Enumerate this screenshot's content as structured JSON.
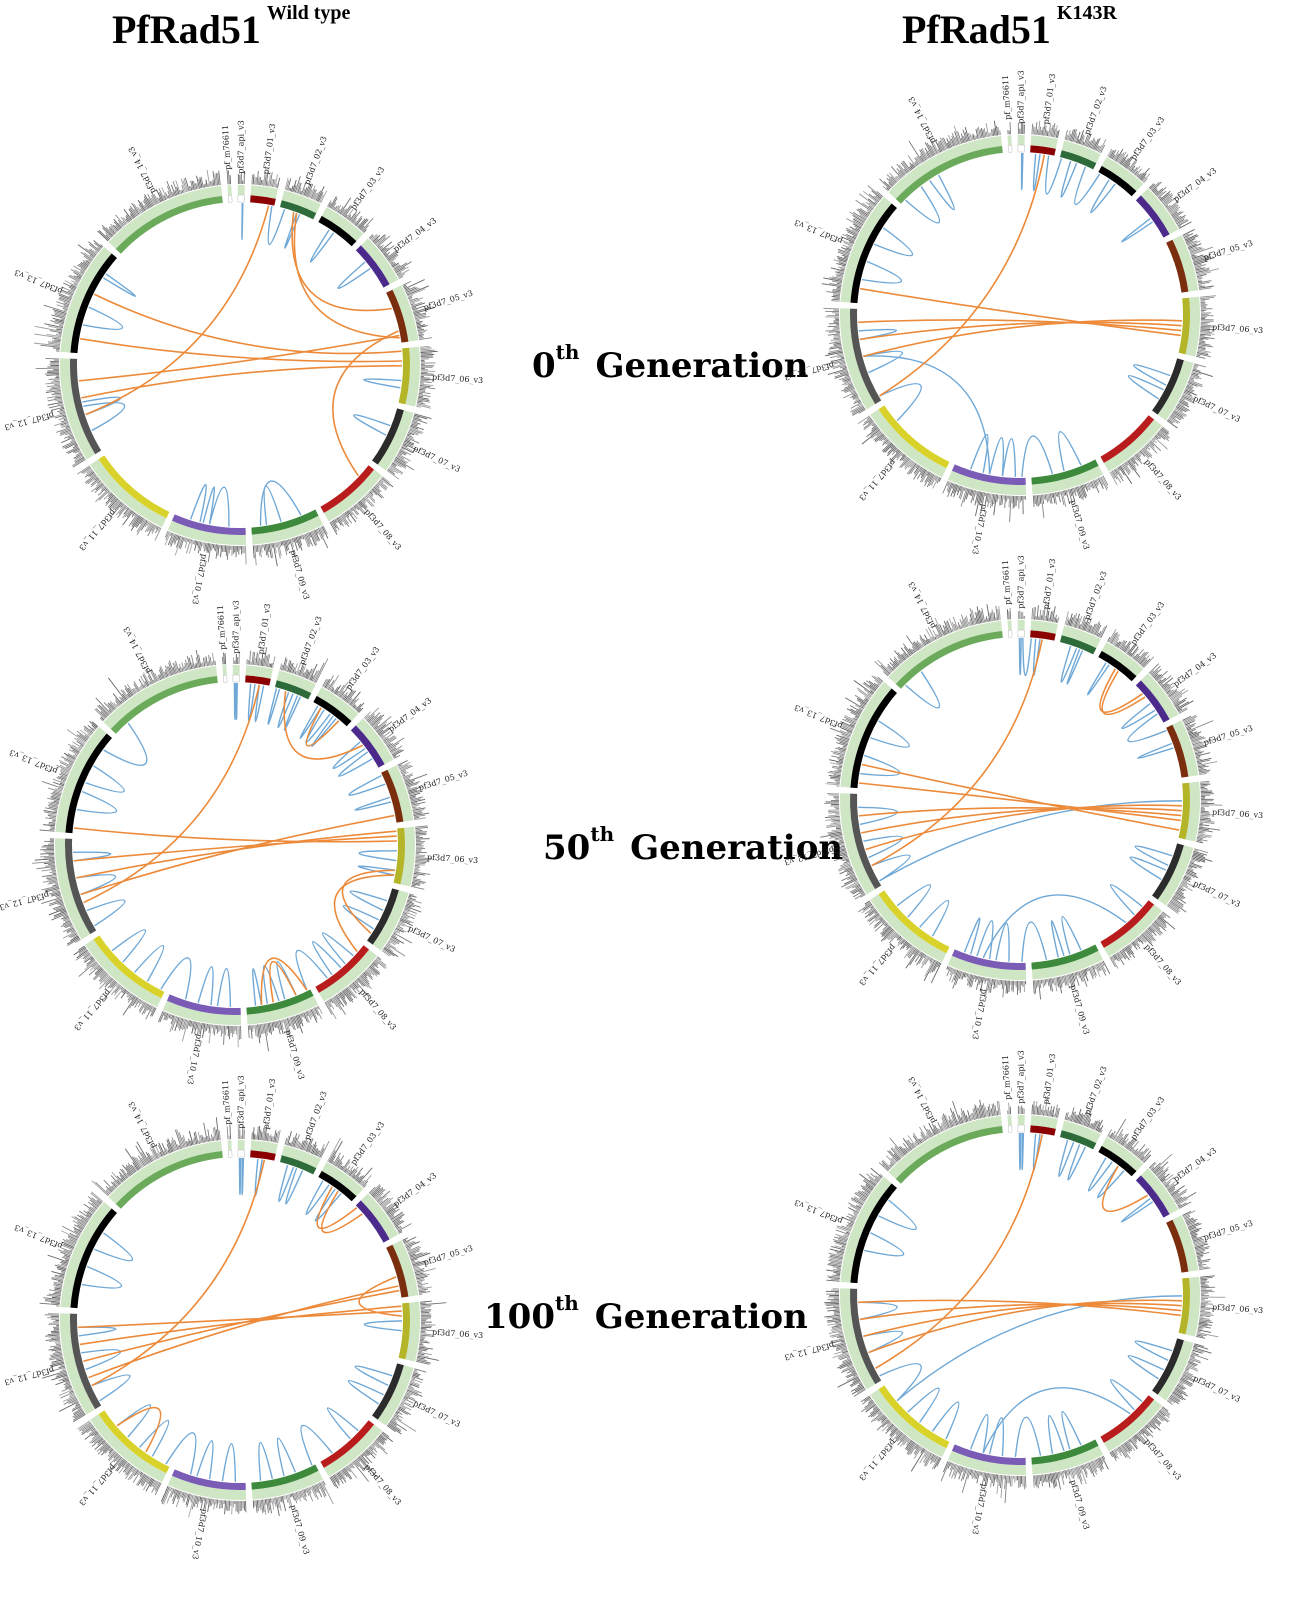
{
  "columns": {
    "left": {
      "name": "PfRad51",
      "superscript": "Wild type"
    },
    "right": {
      "name": "PfRad51",
      "superscript": "K143R"
    }
  },
  "generations": [
    {
      "number": "0",
      "suffix": "th",
      "word": "Generation"
    },
    {
      "number": "50",
      "suffix": "th",
      "word": "Generation"
    },
    {
      "number": "100",
      "suffix": "th",
      "word": "Generation"
    }
  ],
  "chromosomes": [
    {
      "id": "pf_m76611",
      "label": "pf_m76611",
      "color": "#ffffff"
    },
    {
      "id": "pf3d7_api_v3",
      "label": "pf3d7_api_v3",
      "color": "#ffffff"
    },
    {
      "id": "pf3d7_01",
      "label": "pf3d7_01_v3",
      "color": "#8b0000"
    },
    {
      "id": "pf3d7_02",
      "label": "pf3d7_02_v3",
      "color": "#2e6b3a"
    },
    {
      "id": "pf3d7_03",
      "label": "pf3d7_03_v3",
      "color": "#000000"
    },
    {
      "id": "pf3d7_04",
      "label": "pf3d7_04_v3",
      "color": "#4b2a8c"
    },
    {
      "id": "pf3d7_05",
      "label": "pf3d7_05_v3",
      "color": "#7a2e0e"
    },
    {
      "id": "pf3d7_06",
      "label": "pf3d7_06_v3",
      "color": "#b5b52a"
    },
    {
      "id": "pf3d7_07",
      "label": "pf3d7_07_v3",
      "color": "#2b2b2b"
    },
    {
      "id": "pf3d7_08",
      "label": "pf3d7_08_v3",
      "color": "#b81c1c"
    },
    {
      "id": "pf3d7_09",
      "label": "pf3d7_09_v3",
      "color": "#3d8a3d"
    },
    {
      "id": "pf3d7_10",
      "label": "pf3d7_10_v3",
      "color": "#7a5bb5"
    },
    {
      "id": "pf3d7_11",
      "label": "pf3d7_11_v3",
      "color": "#d9d22a"
    },
    {
      "id": "pf3d7_12",
      "label": "pf3d7_12_v3",
      "color": "#555555"
    },
    {
      "id": "pf3d7_13",
      "label": "pf3d7_13_v3",
      "color": "#000000"
    },
    {
      "id": "pf3d7_14",
      "label": "pf3d7_14_v3",
      "color": "#6aaa5a"
    }
  ],
  "colors": {
    "intra_link": "#6fa8d6",
    "inter_link": "#ec8a3a",
    "ideogram_band": "#cfe6c4",
    "histogram": "#222222"
  },
  "plots": [
    {
      "id": "wt-0",
      "column": "left",
      "generation": "0",
      "intra": [
        [
          3.5,
          3.6
        ],
        [
          4.3,
          4.45
        ],
        [
          5.3,
          5.5
        ],
        [
          7.6,
          7.75
        ],
        [
          8.3,
          8.5
        ],
        [
          10.55,
          10.8
        ],
        [
          10.2,
          10.9
        ],
        [
          11.2,
          11.5
        ],
        [
          11.5,
          11.6
        ],
        [
          11.65,
          11.8
        ],
        [
          13.2,
          13.5
        ],
        [
          13.4,
          13.55
        ],
        [
          14.25,
          14.45
        ],
        [
          14.8,
          14.85
        ],
        [
          1.7,
          1.8
        ],
        [
          2.95,
          3.1
        ]
      ],
      "inter": [
        [
          2.8,
          13.4
        ],
        [
          3.4,
          6.3
        ],
        [
          3.5,
          6.95
        ],
        [
          7.2,
          14.1
        ],
        [
          6.9,
          13.8
        ],
        [
          7.0,
          14.6
        ],
        [
          7.3,
          13.6
        ],
        [
          6.8,
          9.2
        ]
      ]
    },
    {
      "id": "k143r-0",
      "column": "right",
      "generation": "0",
      "intra": [
        [
          1.6,
          1.8
        ],
        [
          2.2,
          2.4
        ],
        [
          2.8,
          3.0
        ],
        [
          3.3,
          3.5
        ],
        [
          3.8,
          4.0
        ],
        [
          4.3,
          4.5
        ],
        [
          5.5,
          5.6
        ],
        [
          8.3,
          8.5
        ],
        [
          8.6,
          8.8
        ],
        [
          10.2,
          10.5
        ],
        [
          10.7,
          11.0
        ],
        [
          11.1,
          11.3
        ],
        [
          11.3,
          11.5
        ],
        [
          11.6,
          11.8
        ],
        [
          11.5,
          13.5
        ],
        [
          12.8,
          13.0
        ],
        [
          13.3,
          13.5
        ],
        [
          13.7,
          13.8
        ],
        [
          14.2,
          14.4
        ],
        [
          14.6,
          14.8
        ],
        [
          15.0,
          15.2
        ],
        [
          15.3,
          15.4
        ]
      ],
      "inter": [
        [
          2.6,
          13.0
        ],
        [
          7.4,
          13.5
        ],
        [
          7.5,
          13.7
        ],
        [
          7.6,
          13.9
        ],
        [
          7.7,
          14.1
        ]
      ]
    },
    {
      "id": "wt-50",
      "column": "left",
      "generation": "50",
      "intra": [
        [
          1.2,
          1.4
        ],
        [
          1.6,
          1.7
        ],
        [
          2.2,
          2.4
        ],
        [
          2.6,
          2.8
        ],
        [
          3.0,
          3.1
        ],
        [
          3.4,
          3.55
        ],
        [
          3.7,
          3.8
        ],
        [
          4.1,
          4.2
        ],
        [
          4.3,
          4.5
        ],
        [
          4.6,
          4.7
        ],
        [
          5.3,
          5.5
        ],
        [
          5.6,
          5.8
        ],
        [
          6.0,
          6.2
        ],
        [
          6.5,
          6.6
        ],
        [
          7.4,
          7.6
        ],
        [
          7.8,
          7.9
        ],
        [
          8.2,
          8.4
        ],
        [
          8.6,
          8.8
        ],
        [
          9.2,
          9.4
        ],
        [
          9.5,
          9.7
        ],
        [
          9.8,
          10.0
        ],
        [
          10.2,
          10.4
        ],
        [
          10.5,
          10.7
        ],
        [
          10.8,
          10.9
        ],
        [
          11.1,
          11.3
        ],
        [
          11.4,
          11.6
        ],
        [
          11.8,
          12.0
        ],
        [
          12.2,
          12.4
        ],
        [
          12.6,
          12.8
        ],
        [
          13.0,
          13.2
        ],
        [
          13.4,
          13.6
        ],
        [
          13.8,
          13.9
        ],
        [
          14.2,
          14.4
        ],
        [
          14.5,
          14.7
        ],
        [
          14.9,
          15.1
        ]
      ],
      "inter": [
        [
          2.6,
          13.3
        ],
        [
          3.3,
          5.4
        ],
        [
          6.9,
          13.4
        ],
        [
          7.0,
          13.6
        ],
        [
          7.1,
          13.8
        ],
        [
          7.2,
          14.0
        ],
        [
          7.8,
          8.9
        ],
        [
          7.9,
          9.1
        ],
        [
          10.2,
          10.6
        ],
        [
          10.0,
          10.8
        ],
        [
          4.2,
          4.8
        ]
      ]
    },
    {
      "id": "k143r-50",
      "column": "right",
      "generation": "50",
      "intra": [
        [
          1.2,
          1.5
        ],
        [
          1.8,
          2.0
        ],
        [
          2.2,
          2.4
        ],
        [
          3.3,
          3.5
        ],
        [
          3.6,
          3.7
        ],
        [
          4.2,
          4.3
        ],
        [
          5.5,
          5.7
        ],
        [
          5.8,
          6.0
        ],
        [
          6.3,
          6.4
        ],
        [
          8.2,
          8.4
        ],
        [
          8.5,
          8.7
        ],
        [
          9.1,
          9.3
        ],
        [
          10.2,
          10.4
        ],
        [
          10.5,
          10.6
        ],
        [
          10.8,
          11.0
        ],
        [
          11.2,
          11.4
        ],
        [
          11.5,
          11.7
        ],
        [
          11.8,
          11.9
        ],
        [
          12.2,
          12.4
        ],
        [
          12.6,
          12.8
        ],
        [
          13.0,
          13.2
        ],
        [
          13.3,
          13.5
        ],
        [
          13.7,
          13.9
        ],
        [
          14.1,
          14.3
        ],
        [
          14.5,
          14.7
        ],
        [
          15.0,
          15.2
        ],
        [
          7.3,
          13.0
        ],
        [
          9.5,
          11.6
        ]
      ],
      "inter": [
        [
          2.5,
          13.2
        ],
        [
          4.5,
          5.2
        ],
        [
          4.6,
          5.3
        ],
        [
          7.4,
          13.4
        ],
        [
          7.5,
          13.6
        ],
        [
          7.6,
          13.8
        ],
        [
          7.7,
          14.0
        ],
        [
          7.9,
          14.2
        ]
      ]
    },
    {
      "id": "wt-100",
      "column": "left",
      "generation": "100",
      "intra": [
        [
          1.2,
          1.4
        ],
        [
          1.7,
          1.9
        ],
        [
          2.3,
          2.5
        ],
        [
          3.2,
          3.4
        ],
        [
          3.5,
          3.7
        ],
        [
          4.1,
          4.3
        ],
        [
          4.5,
          4.7
        ],
        [
          7.3,
          7.5
        ],
        [
          8.2,
          8.4
        ],
        [
          8.6,
          8.8
        ],
        [
          9.2,
          9.4
        ],
        [
          9.8,
          10.0
        ],
        [
          10.3,
          10.5
        ],
        [
          10.7,
          10.9
        ],
        [
          11.1,
          11.3
        ],
        [
          11.5,
          11.7
        ],
        [
          11.8,
          12.0
        ],
        [
          12.2,
          12.4
        ],
        [
          12.6,
          12.8
        ],
        [
          13.0,
          13.2
        ],
        [
          13.4,
          13.6
        ],
        [
          13.8,
          13.9
        ],
        [
          14.2,
          14.4
        ],
        [
          14.6,
          14.8
        ]
      ],
      "inter": [
        [
          2.6,
          13.2
        ],
        [
          4.4,
          5.0
        ],
        [
          4.6,
          5.2
        ],
        [
          6.8,
          13.3
        ],
        [
          6.9,
          13.5
        ],
        [
          7.0,
          13.7
        ],
        [
          7.1,
          13.9
        ],
        [
          6.6,
          7.2
        ],
        [
          12.3,
          12.8
        ]
      ]
    },
    {
      "id": "k143r-100",
      "column": "right",
      "generation": "100",
      "intra": [
        [
          1.2,
          1.4
        ],
        [
          1.7,
          1.9
        ],
        [
          2.2,
          2.4
        ],
        [
          3.2,
          3.4
        ],
        [
          3.6,
          3.8
        ],
        [
          4.2,
          4.4
        ],
        [
          4.6,
          4.8
        ],
        [
          5.5,
          5.6
        ],
        [
          8.2,
          8.4
        ],
        [
          8.6,
          8.8
        ],
        [
          9.1,
          9.3
        ],
        [
          10.2,
          10.4
        ],
        [
          10.5,
          10.7
        ],
        [
          10.9,
          11.1
        ],
        [
          11.3,
          11.5
        ],
        [
          11.6,
          11.8
        ],
        [
          12.0,
          12.2
        ],
        [
          12.4,
          12.6
        ],
        [
          12.8,
          13.0
        ],
        [
          13.3,
          13.5
        ],
        [
          13.7,
          13.9
        ],
        [
          14.3,
          14.5
        ],
        [
          14.7,
          14.9
        ],
        [
          7.3,
          12.8
        ],
        [
          9.4,
          11.6
        ]
      ],
      "inter": [
        [
          2.5,
          13.1
        ],
        [
          4.6,
          5.4
        ],
        [
          7.4,
          13.3
        ],
        [
          7.5,
          13.5
        ],
        [
          7.6,
          13.7
        ],
        [
          7.7,
          13.9
        ]
      ]
    }
  ]
}
